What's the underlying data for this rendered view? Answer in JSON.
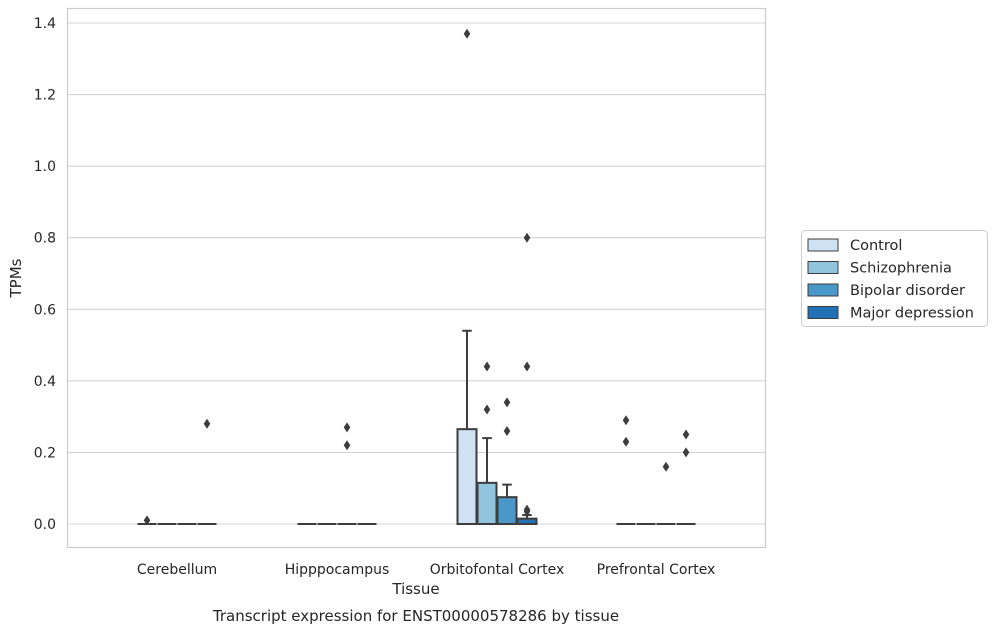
{
  "caption": "Transcript expression for ENST00000578286 by tissue",
  "chart_data": {
    "type": "box",
    "xlabel": "Tissue",
    "ylabel": "TPMs",
    "ylim": [
      -0.067,
      1.44
    ],
    "yticks": [
      0.0,
      0.2,
      0.4,
      0.6,
      0.8,
      1.0,
      1.2,
      1.4
    ],
    "ytick_labels": [
      "0.0",
      "0.2",
      "0.4",
      "0.6",
      "0.8",
      "1.0",
      "1.2",
      "1.4"
    ],
    "grid": "horizontal",
    "legend_position": "right",
    "categories": [
      "Cerebellum",
      "Hipppocampus",
      "Orbitofontal Cortex",
      "Prefrontal Cortex"
    ],
    "series": [
      {
        "name": "Control",
        "color": "#cfe1f2",
        "boxes": [
          {
            "q1": 0,
            "median": 0,
            "q3": 0,
            "whisker_low": 0,
            "whisker_high": 0,
            "outliers": [
              0.01
            ]
          },
          {
            "q1": 0,
            "median": 0,
            "q3": 0,
            "whisker_low": 0,
            "whisker_high": 0,
            "outliers": []
          },
          {
            "q1": 0,
            "median": 0,
            "q3": 0.265,
            "whisker_low": 0,
            "whisker_high": 0.54,
            "outliers": [
              1.37
            ]
          },
          {
            "q1": 0,
            "median": 0,
            "q3": 0,
            "whisker_low": 0,
            "whisker_high": 0,
            "outliers": [
              0.29,
              0.23
            ]
          }
        ]
      },
      {
        "name": "Schizophrenia",
        "color": "#93c4de",
        "boxes": [
          {
            "q1": 0,
            "median": 0,
            "q3": 0,
            "whisker_low": 0,
            "whisker_high": 0,
            "outliers": []
          },
          {
            "q1": 0,
            "median": 0,
            "q3": 0,
            "whisker_low": 0,
            "whisker_high": 0,
            "outliers": []
          },
          {
            "q1": 0,
            "median": 0,
            "q3": 0.115,
            "whisker_low": 0,
            "whisker_high": 0.24,
            "outliers": [
              0.44,
              0.32
            ]
          },
          {
            "q1": 0,
            "median": 0,
            "q3": 0,
            "whisker_low": 0,
            "whisker_high": 0,
            "outliers": []
          }
        ]
      },
      {
        "name": "Bipolar disorder",
        "color": "#4a98c9",
        "boxes": [
          {
            "q1": 0,
            "median": 0,
            "q3": 0,
            "whisker_low": 0,
            "whisker_high": 0,
            "outliers": []
          },
          {
            "q1": 0,
            "median": 0,
            "q3": 0,
            "whisker_low": 0,
            "whisker_high": 0,
            "outliers": [
              0.27,
              0.22
            ]
          },
          {
            "q1": 0,
            "median": 0,
            "q3": 0.075,
            "whisker_low": 0,
            "whisker_high": 0.11,
            "outliers": [
              0.34,
              0.26
            ]
          },
          {
            "q1": 0,
            "median": 0,
            "q3": 0,
            "whisker_low": 0,
            "whisker_high": 0,
            "outliers": [
              0.16
            ]
          }
        ]
      },
      {
        "name": "Major depression",
        "color": "#2171b5",
        "boxes": [
          {
            "q1": 0,
            "median": 0,
            "q3": 0,
            "whisker_low": 0,
            "whisker_high": 0,
            "outliers": [
              0.28
            ]
          },
          {
            "q1": 0,
            "median": 0,
            "q3": 0,
            "whisker_low": 0,
            "whisker_high": 0,
            "outliers": []
          },
          {
            "q1": 0,
            "median": 0,
            "q3": 0.015,
            "whisker_low": 0,
            "whisker_high": 0.025,
            "outliers": [
              0.8,
              0.44,
              0.04,
              0.035
            ]
          },
          {
            "q1": 0,
            "median": 0,
            "q3": 0,
            "whisker_low": 0,
            "whisker_high": 0,
            "outliers": [
              0.25,
              0.2
            ]
          }
        ]
      }
    ]
  }
}
